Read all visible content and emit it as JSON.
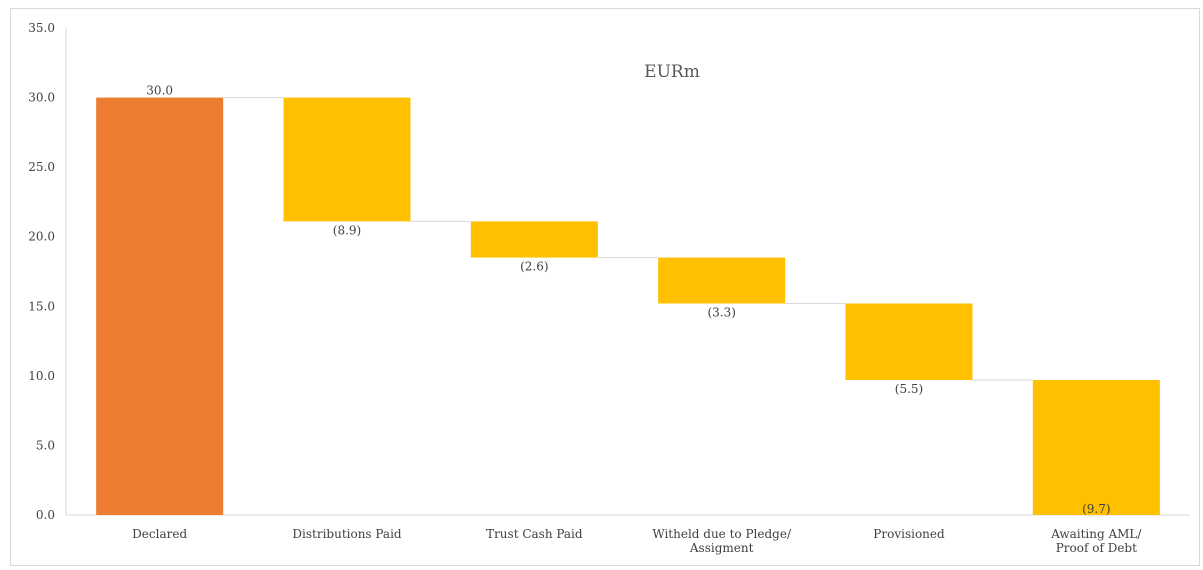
{
  "chart_data": {
    "type": "bar",
    "subtype": "waterfall",
    "title": "EURm",
    "xlabel": "",
    "ylabel": "",
    "ylim": [
      0,
      35
    ],
    "yticks": [
      "0.0",
      "5.0",
      "10.0",
      "15.0",
      "20.0",
      "25.0",
      "30.0",
      "35.0"
    ],
    "categories": [
      [
        "Declared"
      ],
      [
        "Distributions Paid"
      ],
      [
        "Trust Cash Paid"
      ],
      [
        "Witheld due to Pledge/",
        "Assigment"
      ],
      [
        "Provisioned"
      ],
      [
        "Awaiting AML/",
        "Proof of Debt"
      ]
    ],
    "values": [
      30.0,
      -8.9,
      -2.6,
      -3.3,
      -5.5,
      -9.7
    ],
    "data_labels": [
      "30.0",
      "(8.9)",
      "(2.6)",
      "(3.3)",
      "(5.5)",
      "(9.7)"
    ],
    "grid": false,
    "legend": "none",
    "colors": {
      "total": "#ED7D31",
      "decrease": "#FFC000",
      "connector": "#d9d9d9",
      "axis": "#d9d9d9"
    }
  }
}
